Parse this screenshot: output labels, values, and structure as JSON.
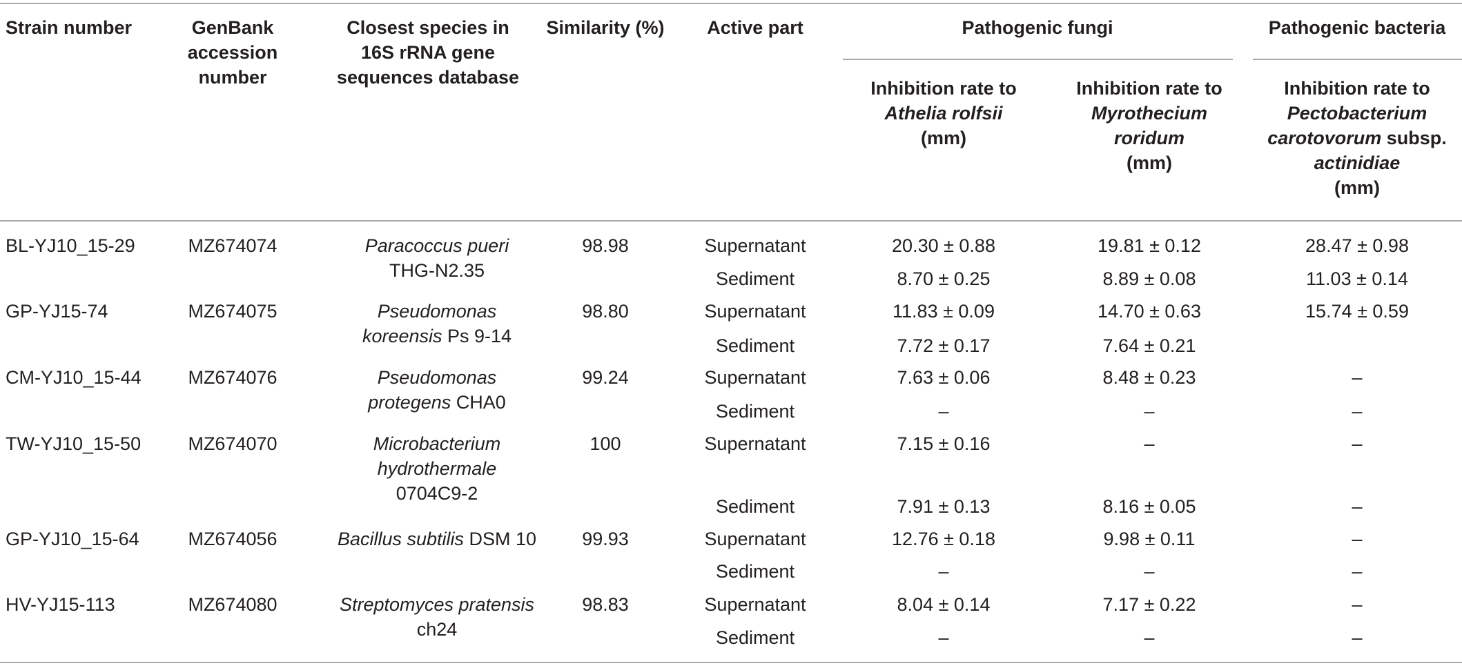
{
  "table": {
    "headers": {
      "strain_number": "Strain number",
      "genbank": [
        "GenBank",
        "accession",
        "number"
      ],
      "closest_species": [
        "Closest species in",
        "16S rRNA gene",
        "sequences database"
      ],
      "similarity": "Similarity (%)",
      "active_part": "Active part",
      "pathogenic_fungi": "Pathogenic fungi",
      "pathogenic_bacteria": "Pathogenic bacteria",
      "athelia": {
        "l1": "Inhibition rate to",
        "l2": "Athelia rolfsii",
        "l3": "(mm)"
      },
      "myrothecium": {
        "l1": "Inhibition rate to",
        "l2": "Myrothecium",
        "l3": "roridum",
        "l4": "(mm)"
      },
      "pectobacterium": {
        "l1": "Inhibition rate to",
        "l2": "Pectobacterium",
        "l3a": "carotovorum",
        "l3b": " subsp.",
        "l4": "actinidiae",
        "l5": "(mm)"
      }
    },
    "rows": [
      {
        "strain": "BL-YJ10_15-29",
        "accession": "MZ674074",
        "species_l1_it": "Paracoccus pueri",
        "species_l1_rest": "",
        "species_l2_it": "",
        "species_l2_rest": "THG-N2.35",
        "species_l3": "",
        "similarity": "98.98",
        "parts": [
          {
            "part": "Supernatant",
            "athelia": "20.30 ± 0.88",
            "myrothecium": "19.81 ± 0.12",
            "pectobacterium": "28.47 ± 0.98"
          },
          {
            "part": "Sediment",
            "athelia": "8.70 ± 0.25",
            "myrothecium": "8.89 ± 0.08",
            "pectobacterium": "11.03 ± 0.14"
          }
        ]
      },
      {
        "strain": "GP-YJ15-74",
        "accession": "MZ674075",
        "species_l1_it": "Pseudomonas",
        "species_l1_rest": "",
        "species_l2_it": "koreensis",
        "species_l2_rest": " Ps 9-14",
        "species_l3": "",
        "similarity": "98.80",
        "parts": [
          {
            "part": "Supernatant",
            "athelia": "11.83 ± 0.09",
            "myrothecium": "14.70 ± 0.63",
            "pectobacterium": "15.74 ± 0.59"
          },
          {
            "part": "Sediment",
            "athelia": "7.72 ± 0.17",
            "myrothecium": "7.64 ± 0.21",
            "pectobacterium": ""
          }
        ]
      },
      {
        "strain": "CM-YJ10_15-44",
        "accession": "MZ674076",
        "species_l1_it": "Pseudomonas",
        "species_l1_rest": "",
        "species_l2_it": "protegens",
        "species_l2_rest": " CHA0",
        "species_l3": "",
        "similarity": "99.24",
        "parts": [
          {
            "part": "Supernatant",
            "athelia": "7.63 ± 0.06",
            "myrothecium": "8.48 ± 0.23",
            "pectobacterium": "–"
          },
          {
            "part": "Sediment",
            "athelia": "–",
            "myrothecium": "–",
            "pectobacterium": "–"
          }
        ]
      },
      {
        "strain": "TW-YJ10_15-50",
        "accession": "MZ674070",
        "species_l1_it": "Microbacterium",
        "species_l1_rest": "",
        "species_l2_it": "hydrothermale",
        "species_l2_rest": "",
        "species_l3": "0704C9-2",
        "similarity": "100",
        "parts": [
          {
            "part": "Supernatant",
            "athelia": "7.15 ± 0.16",
            "myrothecium": "–",
            "pectobacterium": "–"
          },
          {
            "part": "Sediment",
            "athelia": "7.91 ± 0.13",
            "myrothecium": "8.16 ± 0.05",
            "pectobacterium": "–"
          }
        ]
      },
      {
        "strain": "GP-YJ10_15-64",
        "accession": "MZ674056",
        "species_l1_it": "Bacillus subtilis",
        "species_l1_rest": " DSM 10",
        "species_l2_it": "",
        "species_l2_rest": "",
        "species_l3": "",
        "similarity": "99.93",
        "parts": [
          {
            "part": "Supernatant",
            "athelia": "12.76 ± 0.18",
            "myrothecium": "9.98 ± 0.11",
            "pectobacterium": "–"
          },
          {
            "part": "Sediment",
            "athelia": "–",
            "myrothecium": "–",
            "pectobacterium": "–"
          }
        ]
      },
      {
        "strain": "HV-YJ15-113",
        "accession": "MZ674080",
        "species_l1_it": "Streptomyces pratensis",
        "species_l1_rest": "",
        "species_l2_it": "",
        "species_l2_rest": "ch24",
        "species_l3": "",
        "similarity": "98.83",
        "parts": [
          {
            "part": "Supernatant",
            "athelia": "8.04 ± 0.14",
            "myrothecium": "7.17 ± 0.22",
            "pectobacterium": "–"
          },
          {
            "part": "Sediment",
            "athelia": "–",
            "myrothecium": "–",
            "pectobacterium": "–"
          }
        ]
      }
    ]
  }
}
